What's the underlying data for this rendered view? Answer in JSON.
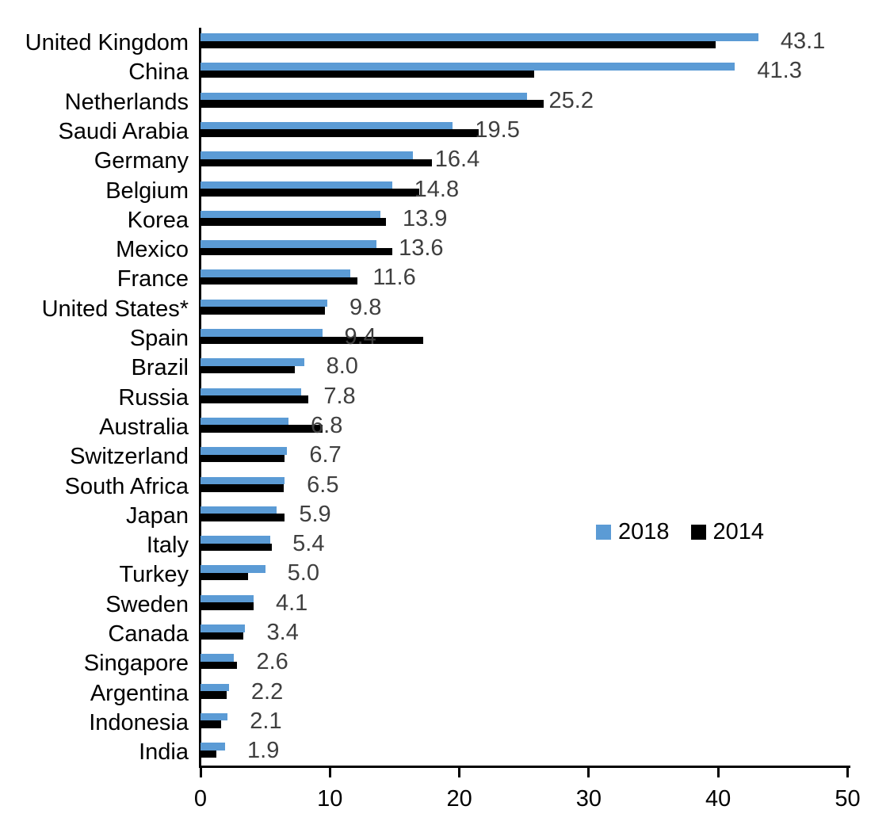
{
  "chart_data": {
    "type": "bar",
    "orientation": "horizontal",
    "title": "",
    "xlabel": "",
    "ylabel": "",
    "xlim": [
      0,
      50
    ],
    "x_ticks": [
      "0",
      "10",
      "20",
      "30",
      "40",
      "50"
    ],
    "grid": false,
    "legend_position": "center-right",
    "categories": [
      "United Kingdom",
      "China",
      "Netherlands",
      "Saudi Arabia",
      "Germany",
      "Belgium",
      "Korea",
      "Mexico",
      "France",
      "United States*",
      "Spain",
      "Brazil",
      "Russia",
      "Australia",
      "Switzerland",
      "South Africa",
      "Japan",
      "Italy",
      "Turkey",
      "Sweden",
      "Canada",
      "Singapore",
      "Argentina",
      "Indonesia",
      "India"
    ],
    "series": [
      {
        "name": "2018",
        "color": "#5B9BD5",
        "values": [
          43.1,
          41.3,
          25.2,
          19.5,
          16.4,
          14.8,
          13.9,
          13.6,
          11.6,
          9.8,
          9.4,
          8.0,
          7.8,
          6.8,
          6.7,
          6.5,
          5.9,
          5.4,
          5.0,
          4.1,
          3.4,
          2.6,
          2.2,
          2.1,
          1.9
        ]
      },
      {
        "name": "2014",
        "color": "#000000",
        "values": [
          39.8,
          25.8,
          26.5,
          21.5,
          17.9,
          16.9,
          14.3,
          14.8,
          12.1,
          9.6,
          17.2,
          7.3,
          8.3,
          9.4,
          6.5,
          6.4,
          6.5,
          5.5,
          3.7,
          4.1,
          3.3,
          2.8,
          2.0,
          1.6,
          1.2
        ]
      }
    ],
    "value_labels": [
      "43.1",
      "41.3",
      "25.2",
      "19.5",
      "16.4",
      "14.8",
      "13.9",
      "13.6",
      "11.6",
      "9.8",
      "9.4",
      "8.0",
      "7.8",
      "6.8",
      "6.7",
      "6.5",
      "5.9",
      "5.4",
      "5.0",
      "4.1",
      "3.4",
      "2.6",
      "2.2",
      "2.1",
      "1.9"
    ],
    "value_label_series": "2018",
    "value_label_color": "#3f3f3f",
    "axis_color": "#000000"
  }
}
